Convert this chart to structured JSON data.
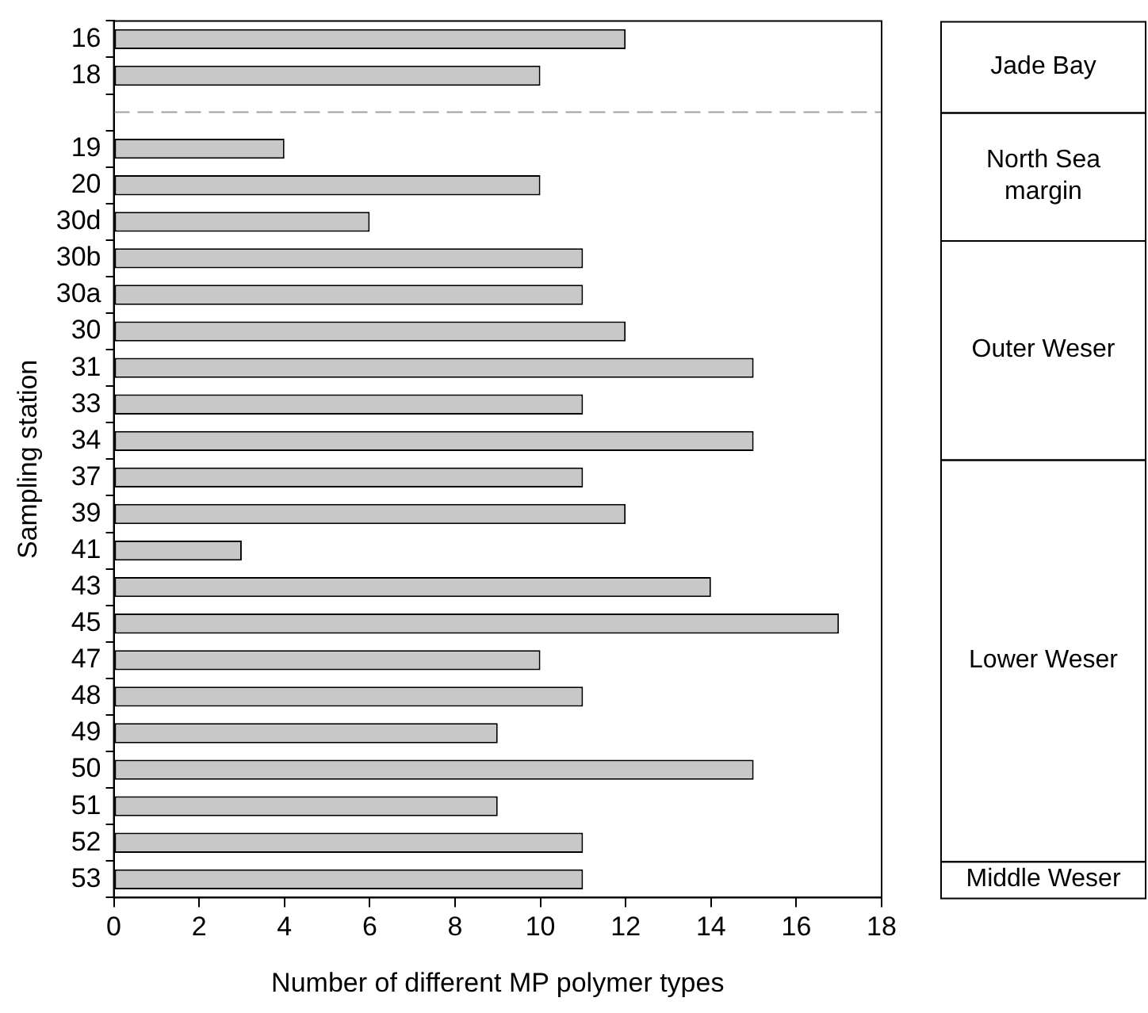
{
  "chart_data": {
    "type": "bar",
    "orientation": "horizontal",
    "xlabel": "Number of different MP polymer types",
    "ylabel": "Sampling station",
    "categories": [
      "16",
      "18",
      null,
      "19",
      "20",
      "30d",
      "30b",
      "30a",
      "30",
      "31",
      "33",
      "34",
      "37",
      "39",
      "41",
      "43",
      "45",
      "47",
      "48",
      "49",
      "50",
      "51",
      "52",
      "53"
    ],
    "values": [
      12,
      10,
      null,
      4,
      10,
      6,
      11,
      11,
      12,
      15,
      11,
      15,
      11,
      12,
      3,
      14,
      17,
      10,
      11,
      9,
      15,
      9,
      11,
      11
    ],
    "color": "#c8c8c8",
    "xlim": [
      0,
      18
    ],
    "xticks": [
      0,
      2,
      4,
      6,
      8,
      10,
      12,
      14,
      16,
      18
    ],
    "grid": false,
    "legend": false,
    "annotations": [
      "Jade Bay",
      "North Sea margin",
      "Outer Weser",
      "Lower Weser",
      "Middle Weser"
    ]
  }
}
